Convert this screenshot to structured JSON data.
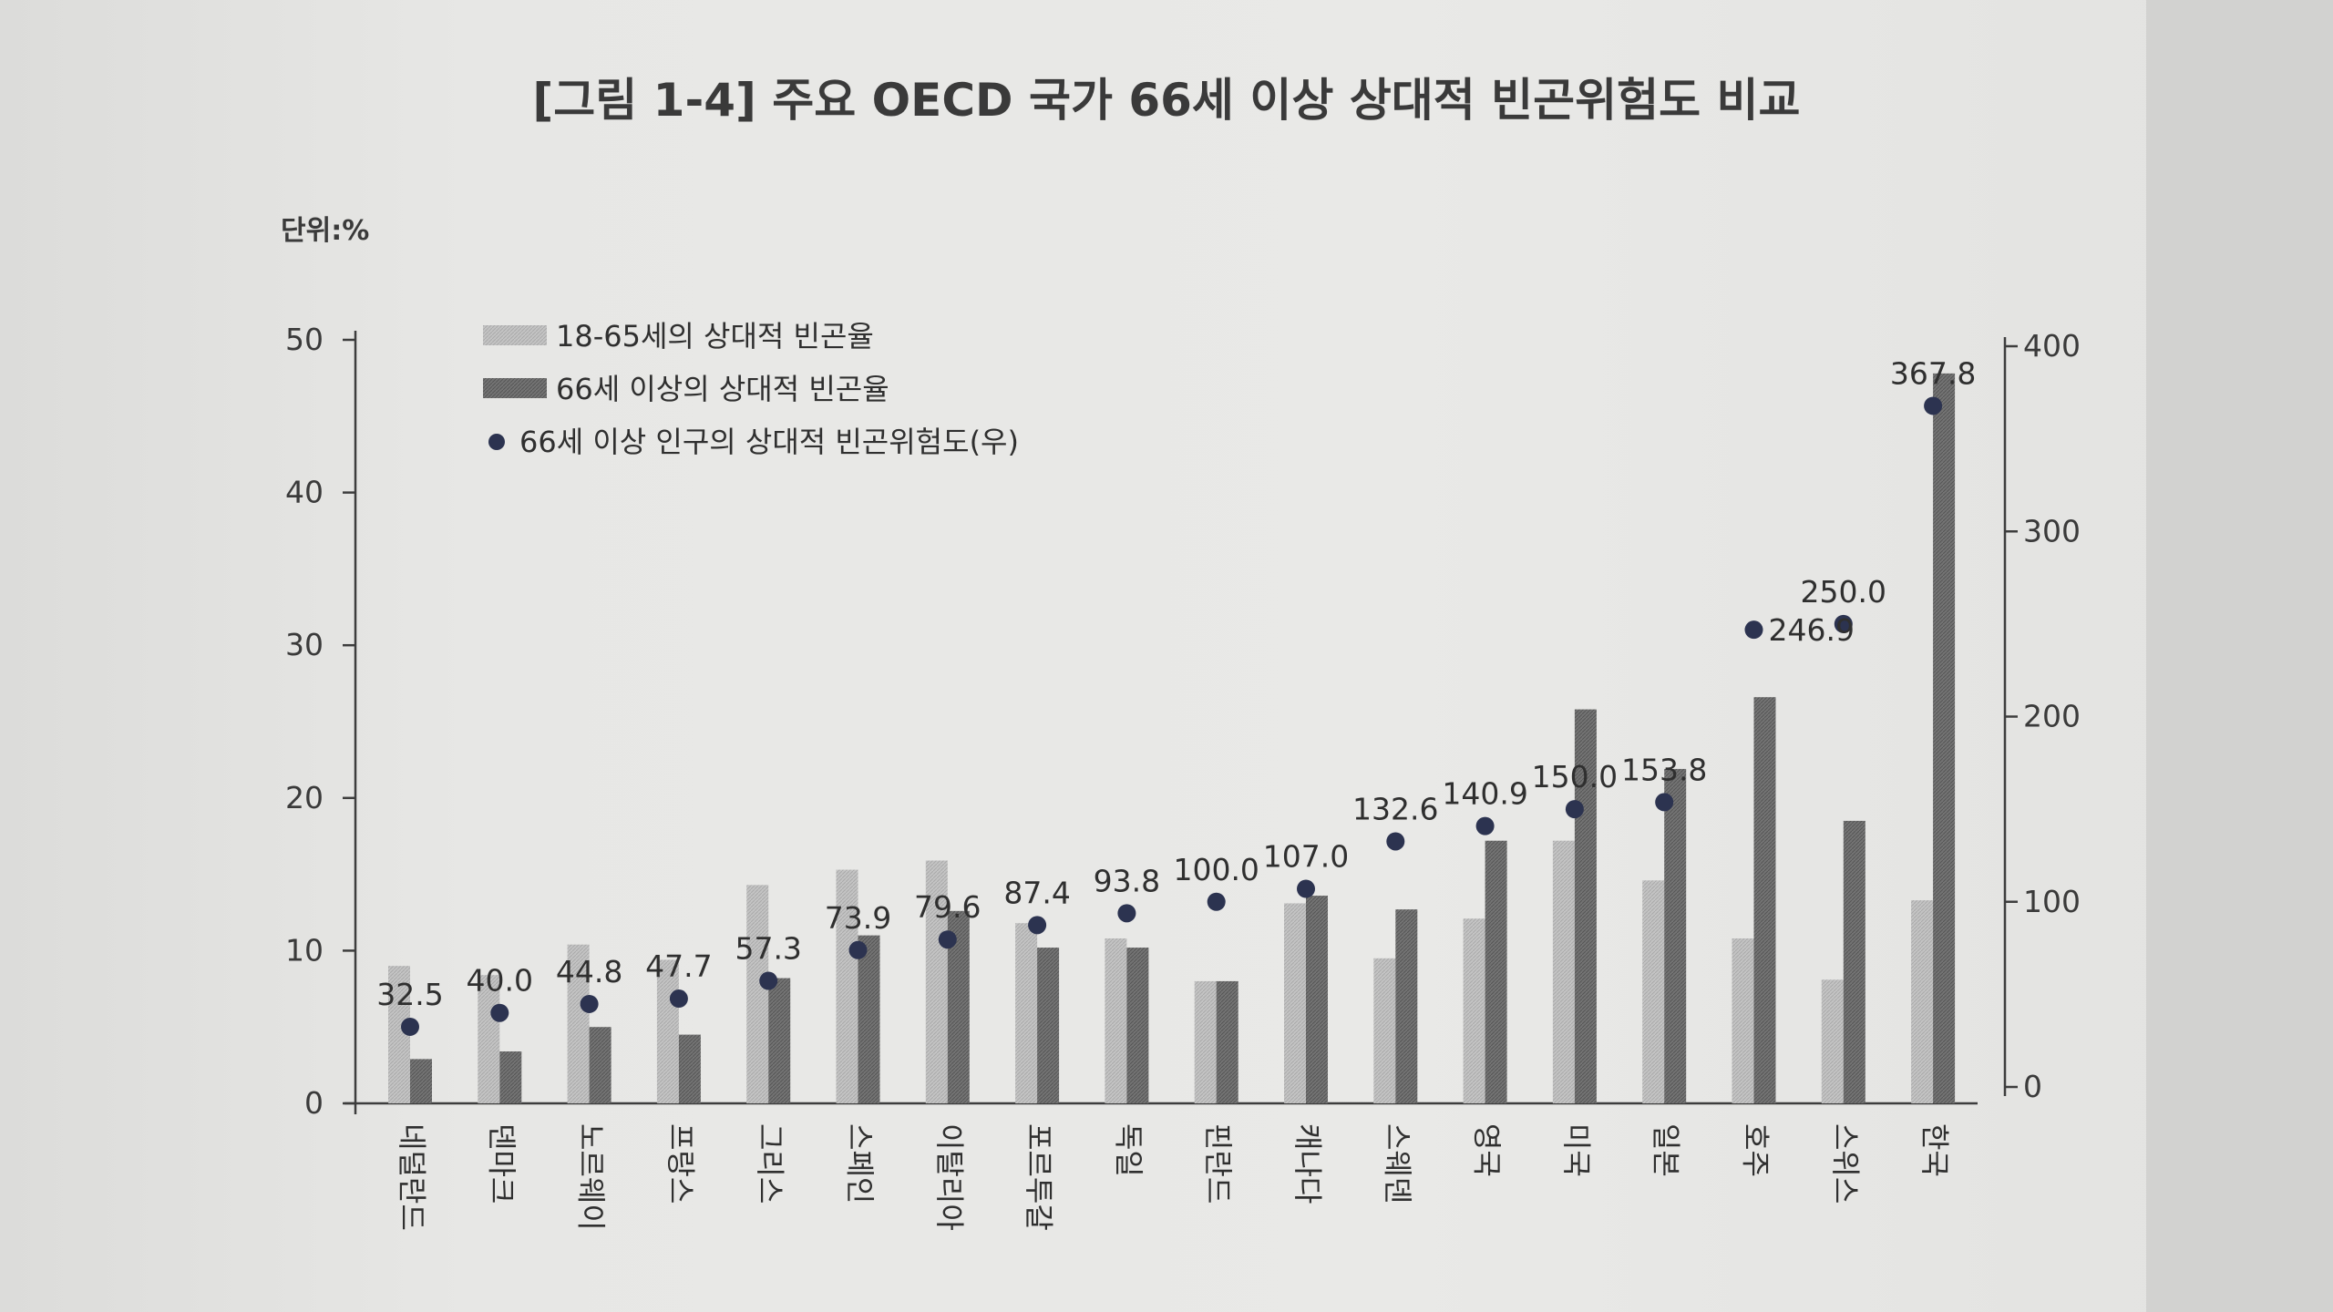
{
  "title": "[그림 1-4] 주요 OECD 국가 66세 이상 상대적 빈곤위험도 비교",
  "unit_label": "단위:%",
  "chart_data": {
    "type": "bar",
    "title": "[그림 1-4] 주요 OECD 국가 66세 이상 상대적 빈곤위험도 비교",
    "categories": [
      "네덜란드",
      "덴마크",
      "노르웨이",
      "프랑스",
      "그리스",
      "스페인",
      "이탈리아",
      "포르투갈",
      "독일",
      "핀란드",
      "캐나다",
      "스웨덴",
      "영국",
      "미국",
      "일본",
      "호주",
      "스위스",
      "한국"
    ],
    "series": [
      {
        "name": "18-65세의 상대적 빈곤율",
        "axis": "left",
        "color": "#b9b9b9",
        "values": [
          9.0,
          8.4,
          10.4,
          9.4,
          14.3,
          15.3,
          15.9,
          11.8,
          10.8,
          8.0,
          13.1,
          9.5,
          12.1,
          17.2,
          14.6,
          10.8,
          8.1,
          13.3
        ]
      },
      {
        "name": "66세 이상의 상대적 빈곤율",
        "axis": "left",
        "color": "#6b6b6b",
        "values": [
          2.9,
          3.4,
          5.0,
          4.5,
          8.2,
          11.0,
          12.6,
          10.2,
          10.2,
          8.0,
          13.6,
          12.7,
          17.2,
          25.8,
          21.9,
          26.6,
          18.5,
          47.8
        ]
      },
      {
        "name": "66세 이상 인구의 상대적 빈곤위험도(우)",
        "axis": "right",
        "type": "scatter",
        "color": "#2c3350",
        "values": [
          32.5,
          40.0,
          44.8,
          47.7,
          57.3,
          73.9,
          79.6,
          87.4,
          93.8,
          100.0,
          107.0,
          132.6,
          140.9,
          150.0,
          153.8,
          246.9,
          250.0,
          367.8
        ]
      }
    ],
    "data_labels": [
      "32.5",
      "40.0",
      "44.8",
      "47.7",
      "57.3",
      "73.9",
      "79.6",
      "87.4",
      "93.8",
      "100.0",
      "107.0",
      "132.6",
      "140.9",
      "150.0",
      "153.8",
      "246.9",
      "250.0",
      "367.8"
    ],
    "y_left": {
      "ylim": [
        0,
        50
      ],
      "ticks": [
        "0",
        "10",
        "20",
        "30",
        "40",
        "50"
      ]
    },
    "y_right": {
      "ylim": [
        0,
        400
      ],
      "ticks": [
        "0",
        "100",
        "200",
        "300",
        "400"
      ]
    },
    "legend": {
      "placement": "top-left",
      "items": [
        "18-65세의 상대적 빈곤율",
        "66세 이상의 상대적 빈곤율",
        "66세 이상 인구의 상대적 빈곤위험도(우)"
      ]
    },
    "grid": false
  }
}
